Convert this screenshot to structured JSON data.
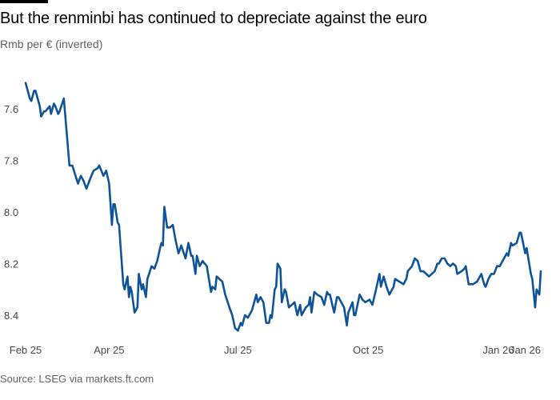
{
  "title": "But the renminbi has continued to depreciate against the euro",
  "subtitle": "Rmb per € (inverted)",
  "source": "Source: LSEG via markets.ft.com",
  "colors": {
    "line": "#0f5499",
    "text": "#33302e",
    "muted": "#66605c",
    "topbar": "#000000"
  },
  "chart_data": {
    "type": "line",
    "title": "But the renminbi has continued to depreciate against the euro",
    "ylabel": "Rmb per € (inverted)",
    "xlabel": "",
    "y_inverted": true,
    "ylim": [
      7.45,
      8.5
    ],
    "xlim": [
      "2025-02-01",
      "2026-01-31"
    ],
    "grid": false,
    "legend": "none",
    "y_ticks": [
      {
        "value": 7.6,
        "label": "7.6"
      },
      {
        "value": 7.8,
        "label": "7.8"
      },
      {
        "value": 8.0,
        "label": "8.0"
      },
      {
        "value": 8.2,
        "label": "8.2"
      },
      {
        "value": 8.4,
        "label": "8.4"
      }
    ],
    "x_ticks": [
      {
        "date": "2025-02-01",
        "label": "Feb 25"
      },
      {
        "date": "2025-04-01",
        "label": "Apr 25"
      },
      {
        "date": "2025-07-01",
        "label": "Jul 25"
      },
      {
        "date": "2025-10-01",
        "label": "Oct 25"
      },
      {
        "date": "2026-01-01",
        "label": "Jan 26"
      },
      {
        "date": "2026-01-31",
        "label": "Jan 26"
      }
    ],
    "series": [
      {
        "points": [
          [
            "2025-02-01",
            7.5
          ],
          [
            "2025-02-04",
            7.56
          ],
          [
            "2025-02-05",
            7.57
          ],
          [
            "2025-02-07",
            7.53
          ],
          [
            "2025-02-08",
            7.53
          ],
          [
            "2025-02-10",
            7.57
          ],
          [
            "2025-02-11",
            7.59
          ],
          [
            "2025-02-12",
            7.63
          ],
          [
            "2025-02-14",
            7.61
          ],
          [
            "2025-02-15",
            7.61
          ],
          [
            "2025-02-18",
            7.59
          ],
          [
            "2025-02-19",
            7.62
          ],
          [
            "2025-02-21",
            7.58
          ],
          [
            "2025-02-22",
            7.59
          ],
          [
            "2025-02-24",
            7.62
          ],
          [
            "2025-02-25",
            7.61
          ],
          [
            "2025-02-28",
            7.56
          ],
          [
            "2025-03-04",
            7.82
          ],
          [
            "2025-03-06",
            7.82
          ],
          [
            "2025-03-10",
            7.89
          ],
          [
            "2025-03-12",
            7.86
          ],
          [
            "2025-03-14",
            7.88
          ],
          [
            "2025-03-16",
            7.91
          ],
          [
            "2025-03-18",
            7.88
          ],
          [
            "2025-03-21",
            7.84
          ],
          [
            "2025-03-24",
            7.83
          ],
          [
            "2025-03-25",
            7.82
          ],
          [
            "2025-03-28",
            7.86
          ],
          [
            "2025-03-30",
            7.84
          ],
          [
            "2025-04-01",
            7.89
          ],
          [
            "2025-04-03",
            8.05
          ],
          [
            "2025-04-04",
            7.97
          ],
          [
            "2025-04-05",
            7.97
          ],
          [
            "2025-04-07",
            8.04
          ],
          [
            "2025-04-08",
            8.05
          ],
          [
            "2025-04-11",
            8.28
          ],
          [
            "2025-04-12",
            8.3
          ],
          [
            "2025-04-14",
            8.25
          ],
          [
            "2025-04-15",
            8.33
          ],
          [
            "2025-04-16",
            8.29
          ],
          [
            "2025-04-17",
            8.31
          ],
          [
            "2025-04-19",
            8.39
          ],
          [
            "2025-04-21",
            8.37
          ],
          [
            "2025-04-22",
            8.24
          ],
          [
            "2025-04-24",
            8.3
          ],
          [
            "2025-04-25",
            8.28
          ],
          [
            "2025-04-27",
            8.33
          ],
          [
            "2025-04-28",
            8.26
          ],
          [
            "2025-05-01",
            8.21
          ],
          [
            "2025-05-03",
            8.22
          ],
          [
            "2025-05-05",
            8.19
          ],
          [
            "2025-05-07",
            8.14
          ],
          [
            "2025-05-08",
            8.12
          ],
          [
            "2025-05-09",
            8.13
          ],
          [
            "2025-05-10",
            7.98
          ],
          [
            "2025-05-12",
            8.06
          ],
          [
            "2025-05-14",
            8.06
          ],
          [
            "2025-05-16",
            8.05
          ],
          [
            "2025-05-18",
            8.11
          ],
          [
            "2025-05-20",
            8.16
          ],
          [
            "2025-05-22",
            8.13
          ],
          [
            "2025-05-25",
            8.18
          ],
          [
            "2025-05-27",
            8.12
          ],
          [
            "2025-05-29",
            8.17
          ],
          [
            "2025-05-30",
            8.17
          ],
          [
            "2025-06-01",
            8.24
          ],
          [
            "2025-06-02",
            8.17
          ],
          [
            "2025-06-04",
            8.21
          ],
          [
            "2025-06-06",
            8.19
          ],
          [
            "2025-06-09",
            8.21
          ],
          [
            "2025-06-12",
            8.31
          ],
          [
            "2025-06-13",
            8.29
          ],
          [
            "2025-06-15",
            8.3
          ],
          [
            "2025-06-16",
            8.25
          ],
          [
            "2025-06-20",
            8.27
          ],
          [
            "2025-06-22",
            8.32
          ],
          [
            "2025-06-25",
            8.37
          ],
          [
            "2025-06-27",
            8.4
          ],
          [
            "2025-06-29",
            8.45
          ],
          [
            "2025-07-01",
            8.46
          ],
          [
            "2025-07-03",
            8.43
          ],
          [
            "2025-07-04",
            8.44
          ],
          [
            "2025-07-06",
            8.4
          ],
          [
            "2025-07-08",
            8.41
          ],
          [
            "2025-07-11",
            8.38
          ],
          [
            "2025-07-14",
            8.32
          ],
          [
            "2025-07-15",
            8.35
          ],
          [
            "2025-07-17",
            8.33
          ],
          [
            "2025-07-19",
            8.35
          ],
          [
            "2025-07-21",
            8.43
          ],
          [
            "2025-07-23",
            8.43
          ],
          [
            "2025-07-24",
            8.4
          ],
          [
            "2025-07-25",
            8.41
          ],
          [
            "2025-07-27",
            8.3
          ],
          [
            "2025-07-28",
            8.29
          ],
          [
            "2025-07-29",
            8.2
          ],
          [
            "2025-07-31",
            8.22
          ],
          [
            "2025-08-01",
            8.35
          ],
          [
            "2025-08-03",
            8.3
          ],
          [
            "2025-08-04",
            8.31
          ],
          [
            "2025-08-06",
            8.37
          ],
          [
            "2025-08-10",
            8.35
          ],
          [
            "2025-08-12",
            8.4
          ],
          [
            "2025-08-14",
            8.36
          ],
          [
            "2025-08-15",
            8.4
          ],
          [
            "2025-08-18",
            8.37
          ],
          [
            "2025-08-20",
            8.36
          ],
          [
            "2025-08-21",
            8.33
          ],
          [
            "2025-08-22",
            8.39
          ],
          [
            "2025-08-24",
            8.31
          ],
          [
            "2025-08-26",
            8.32
          ],
          [
            "2025-08-29",
            8.33
          ],
          [
            "2025-08-31",
            8.36
          ],
          [
            "2025-09-02",
            8.31
          ],
          [
            "2025-09-03",
            8.32
          ],
          [
            "2025-09-04",
            8.32
          ],
          [
            "2025-09-07",
            8.39
          ],
          [
            "2025-09-09",
            8.33
          ],
          [
            "2025-09-10",
            8.33
          ],
          [
            "2025-09-12",
            8.35
          ],
          [
            "2025-09-14",
            8.37
          ],
          [
            "2025-09-16",
            8.44
          ],
          [
            "2025-09-17",
            8.39
          ],
          [
            "2025-09-20",
            8.35
          ],
          [
            "2025-09-21",
            8.4
          ],
          [
            "2025-09-22",
            8.4
          ],
          [
            "2025-09-25",
            8.32
          ],
          [
            "2025-09-27",
            8.34
          ],
          [
            "2025-09-29",
            8.35
          ],
          [
            "2025-10-02",
            8.34
          ],
          [
            "2025-10-04",
            8.36
          ],
          [
            "2025-10-07",
            8.29
          ],
          [
            "2025-10-09",
            8.24
          ],
          [
            "2025-10-10",
            8.29
          ],
          [
            "2025-10-12",
            8.25
          ],
          [
            "2025-10-14",
            8.29
          ],
          [
            "2025-10-16",
            8.32
          ],
          [
            "2025-10-19",
            8.29
          ],
          [
            "2025-10-20",
            8.26
          ],
          [
            "2025-10-23",
            8.27
          ],
          [
            "2025-10-26",
            8.28
          ],
          [
            "2025-10-28",
            8.26
          ],
          [
            "2025-10-29",
            8.23
          ],
          [
            "2025-11-01",
            8.21
          ],
          [
            "2025-11-03",
            8.18
          ],
          [
            "2025-11-05",
            8.19
          ],
          [
            "2025-11-07",
            8.23
          ],
          [
            "2025-11-09",
            8.23
          ],
          [
            "2025-11-13",
            8.25
          ],
          [
            "2025-11-17",
            8.23
          ],
          [
            "2025-11-19",
            8.2
          ],
          [
            "2025-11-20",
            8.2
          ],
          [
            "2025-11-22",
            8.18
          ],
          [
            "2025-11-24",
            8.18
          ],
          [
            "2025-11-26",
            8.2
          ],
          [
            "2025-11-28",
            8.21
          ],
          [
            "2025-11-30",
            8.2
          ],
          [
            "2025-12-02",
            8.21
          ],
          [
            "2025-12-03",
            8.24
          ],
          [
            "2025-12-06",
            8.23
          ],
          [
            "2025-12-08",
            8.22
          ],
          [
            "2025-12-09",
            8.21
          ],
          [
            "2025-12-11",
            8.28
          ],
          [
            "2025-12-14",
            8.28
          ],
          [
            "2025-12-17",
            8.27
          ],
          [
            "2025-12-20",
            8.24
          ],
          [
            "2025-12-22",
            8.28
          ],
          [
            "2025-12-23",
            8.29
          ],
          [
            "2025-12-25",
            8.26
          ],
          [
            "2025-12-27",
            8.24
          ],
          [
            "2025-12-29",
            8.24
          ],
          [
            "2025-12-31",
            8.21
          ],
          [
            "2026-01-02",
            8.21
          ],
          [
            "2026-01-04",
            8.19
          ],
          [
            "2026-01-07",
            8.16
          ],
          [
            "2026-01-08",
            8.17
          ],
          [
            "2026-01-10",
            8.12
          ],
          [
            "2026-01-11",
            8.13
          ],
          [
            "2026-01-14",
            8.12
          ],
          [
            "2026-01-16",
            8.08
          ],
          [
            "2026-01-17",
            8.08
          ],
          [
            "2026-01-20",
            8.16
          ],
          [
            "2026-01-21",
            8.14
          ],
          [
            "2026-01-24",
            8.24
          ],
          [
            "2026-01-25",
            8.26
          ],
          [
            "2026-01-27",
            8.37
          ],
          [
            "2026-01-28",
            8.3
          ],
          [
            "2026-01-30",
            8.32
          ],
          [
            "2026-01-31",
            8.23
          ]
        ]
      }
    ]
  }
}
